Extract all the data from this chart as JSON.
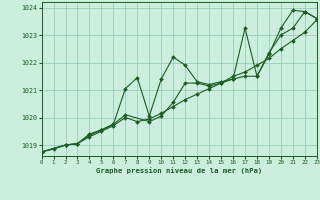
{
  "title": "Graphe pression niveau de la mer (hPa)",
  "xlim": [
    0,
    23
  ],
  "ylim": [
    1018.6,
    1024.2
  ],
  "yticks": [
    1019,
    1020,
    1021,
    1022,
    1023,
    1024
  ],
  "xticks": [
    0,
    1,
    2,
    3,
    4,
    5,
    6,
    7,
    8,
    9,
    10,
    11,
    12,
    13,
    14,
    15,
    16,
    17,
    18,
    19,
    20,
    21,
    22,
    23
  ],
  "bg_color": "#cceedd",
  "grid_color": "#99ccbb",
  "line_color": "#1a5e20",
  "line1_x": [
    0,
    2,
    3,
    4,
    5,
    6,
    7,
    8,
    9,
    10,
    11,
    12,
    13,
    14,
    15,
    16,
    17,
    18,
    19,
    20,
    21,
    22,
    23
  ],
  "line1_y": [
    1018.75,
    1019.0,
    1019.05,
    1019.4,
    1019.55,
    1019.75,
    1021.05,
    1021.45,
    1020.05,
    1021.4,
    1022.2,
    1021.9,
    1021.3,
    1021.2,
    1021.3,
    1021.4,
    1023.25,
    1021.5,
    1022.3,
    1023.25,
    1023.9,
    1023.85,
    1023.6
  ],
  "line2_x": [
    0,
    1,
    2,
    3,
    4,
    5,
    6,
    7,
    8,
    9,
    10,
    11,
    12,
    13,
    14,
    15,
    16,
    17,
    18,
    19,
    20,
    21,
    22,
    23
  ],
  "line2_y": [
    1018.75,
    1018.85,
    1019.0,
    1019.05,
    1019.3,
    1019.5,
    1019.7,
    1020.0,
    1019.85,
    1019.95,
    1020.15,
    1020.4,
    1020.65,
    1020.85,
    1021.05,
    1021.25,
    1021.5,
    1021.65,
    1021.9,
    1022.15,
    1022.5,
    1022.8,
    1023.1,
    1023.55
  ],
  "line3_x": [
    0,
    2,
    3,
    4,
    5,
    6,
    7,
    9,
    10,
    11,
    12,
    13,
    14,
    15,
    16,
    17,
    18,
    19,
    20,
    21,
    22,
    23
  ],
  "line3_y": [
    1018.75,
    1019.0,
    1019.05,
    1019.35,
    1019.55,
    1019.75,
    1020.1,
    1019.85,
    1020.05,
    1020.55,
    1021.25,
    1021.25,
    1021.15,
    1021.25,
    1021.4,
    1021.5,
    1021.5,
    1022.35,
    1023.0,
    1023.25,
    1023.85,
    1023.6
  ]
}
